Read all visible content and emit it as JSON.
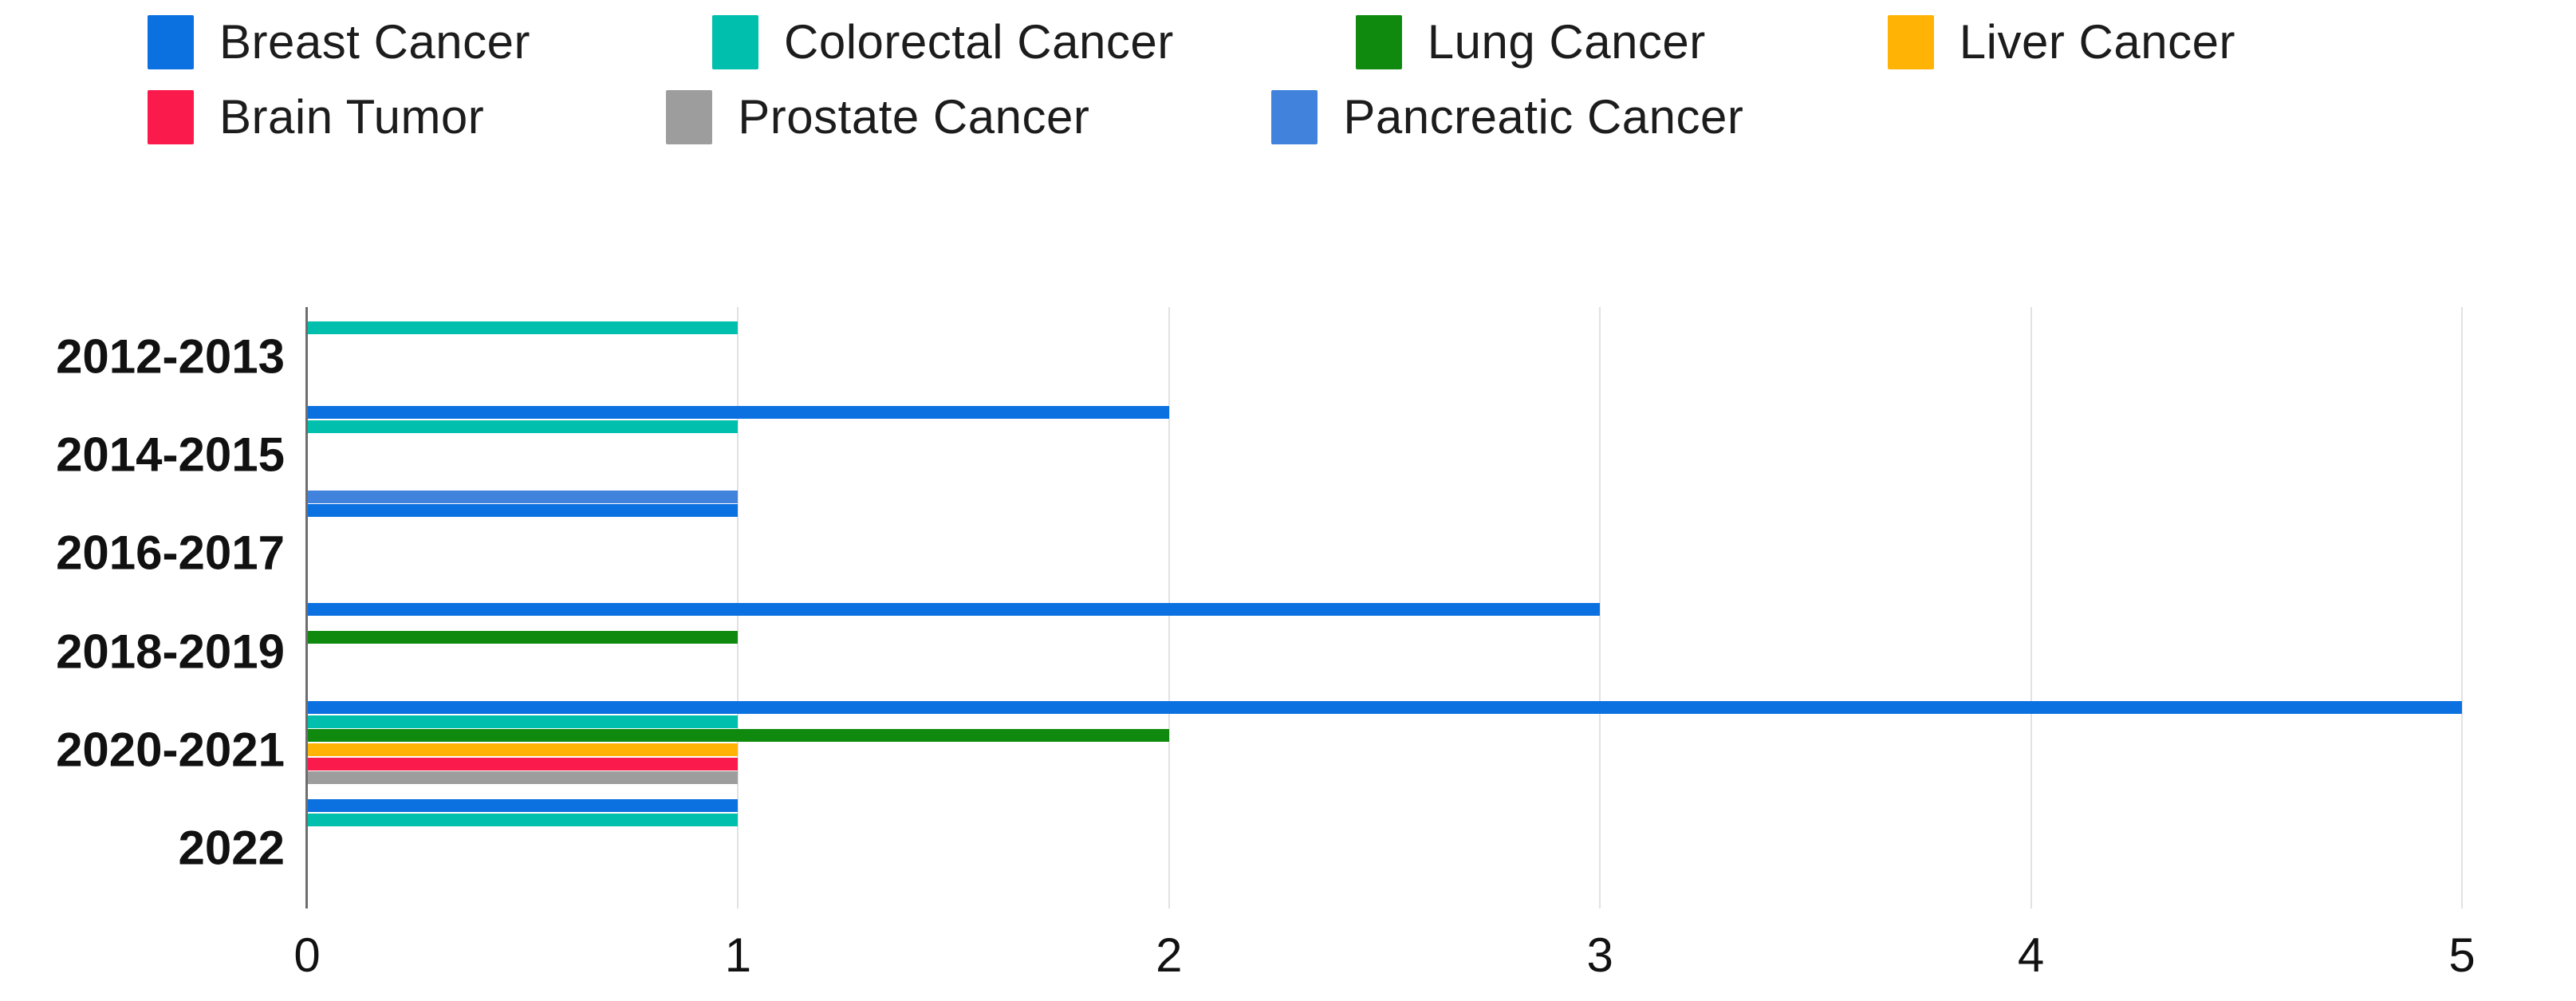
{
  "chart_data": {
    "type": "bar",
    "orientation": "horizontal",
    "title": "",
    "xlabel": "",
    "ylabel": "",
    "categories": [
      "2012-2013",
      "2014-2015",
      "2016-2017",
      "2018-2019",
      "2020-2021",
      "2022"
    ],
    "series": [
      {
        "name": "Breast Cancer",
        "color": "#0c71e0",
        "values": [
          0,
          2,
          1,
          3,
          5,
          1
        ]
      },
      {
        "name": "Colorectal Cancer",
        "color": "#00bfad",
        "values": [
          1,
          1,
          0,
          0,
          1,
          1
        ]
      },
      {
        "name": "Lung Cancer",
        "color": "#0f8a0f",
        "values": [
          0,
          0,
          0,
          1,
          2,
          0
        ]
      },
      {
        "name": "Liver Cancer",
        "color": "#ffb405",
        "values": [
          0,
          0,
          0,
          0,
          1,
          0
        ]
      },
      {
        "name": "Brain Tumor",
        "color": "#fa1a4b",
        "values": [
          0,
          0,
          0,
          0,
          1,
          0
        ]
      },
      {
        "name": "Prostate Cancer",
        "color": "#9d9d9d",
        "values": [
          0,
          0,
          0,
          0,
          1,
          0
        ]
      },
      {
        "name": "Pancreatic Cancer",
        "color": "#4183dc",
        "values": [
          0,
          1,
          0,
          0,
          0,
          0
        ]
      }
    ],
    "x_ticks": [
      "0",
      "1",
      "2",
      "3",
      "4",
      "5"
    ],
    "xlim": [
      0,
      5
    ],
    "grid": true,
    "legend_position": "top-left",
    "grid_color": "#e2e2e2",
    "axis_color": "#6d6d6d",
    "text_color": "#111111"
  }
}
